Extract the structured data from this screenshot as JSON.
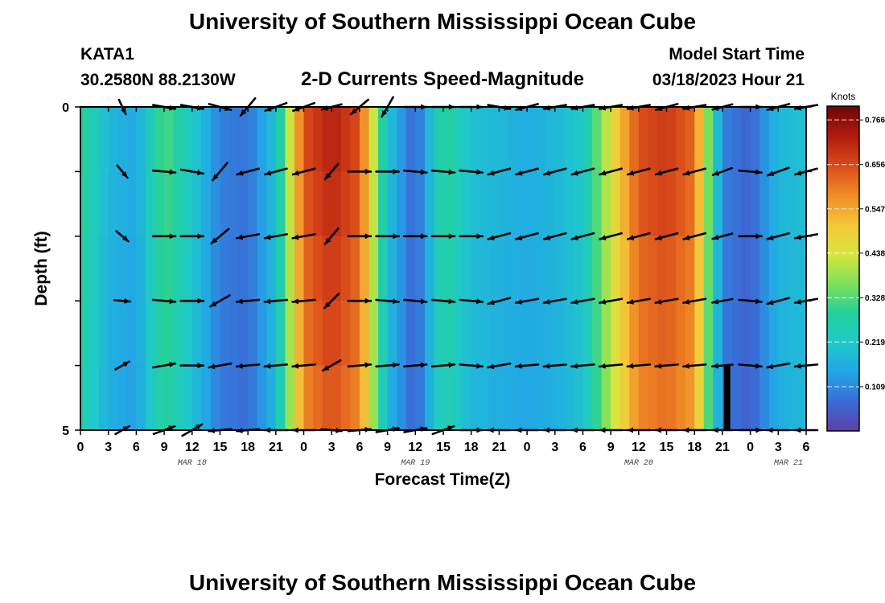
{
  "page": {
    "title": "University of Southern Mississippi Ocean Cube",
    "title_repeat": "University of Southern Mississippi Ocean Cube",
    "station": "KATA1",
    "coordinates": "30.2580N  88.2130W",
    "model_start_label": "Model Start Time",
    "model_start_value": "03/18/2023 Hour 21"
  },
  "chart_data": {
    "type": "heatmap",
    "title": "2-D Currents Speed-Magnitude",
    "xlabel": "Forecast Time(Z)",
    "ylabel": "Depth (ft)",
    "units": "Knots",
    "x_tick_labels": [
      "0",
      "3",
      "6",
      "9",
      "12",
      "15",
      "18",
      "21",
      "0",
      "3",
      "6",
      "9",
      "12",
      "15",
      "18",
      "21",
      "0",
      "3",
      "6",
      "9",
      "12",
      "15",
      "18",
      "21",
      "0",
      "3",
      "6"
    ],
    "x_range_hours": [
      0,
      78
    ],
    "date_labels": [
      {
        "label": "MAR 18",
        "hour": 12
      },
      {
        "label": "MAR 19",
        "hour": 36
      },
      {
        "label": "MAR 20",
        "hour": 60
      },
      {
        "label": "MAR 21",
        "hour": 78
      }
    ],
    "y_tick_labels": [
      {
        "label": "0",
        "depth": 0
      },
      {
        "label": "",
        "depth": 1
      },
      {
        "label": "",
        "depth": 2
      },
      {
        "label": "",
        "depth": 3
      },
      {
        "label": "",
        "depth": 4
      },
      {
        "label": "5",
        "depth": 5
      }
    ],
    "y_range_ft": [
      0,
      5
    ],
    "colorbar_ticks": [
      "0.766",
      "0.656",
      "0.547",
      "0.438",
      "0.328",
      "0.219",
      "0.109"
    ],
    "colorbar_tick_values": [
      0.766,
      0.656,
      0.547,
      0.438,
      0.328,
      0.219,
      0.109
    ],
    "colorbar_range": [
      0,
      0.8
    ],
    "colorbar_colors": [
      "#5e3ea8",
      "#3a6cd6",
      "#22a7e6",
      "#1fc9c9",
      "#24d09a",
      "#7fe05a",
      "#d8e63c",
      "#f5c63a",
      "#f08a26",
      "#d94a1a",
      "#b01a0f",
      "#6e0605"
    ],
    "speed_hours": [
      0,
      3,
      6,
      9,
      12,
      15,
      18,
      21,
      24,
      27,
      30,
      33,
      36,
      39,
      42,
      45,
      48,
      51,
      54,
      57,
      60,
      63,
      66,
      69,
      72,
      75,
      78
    ],
    "speed_profile": [
      0.3,
      0.18,
      0.15,
      0.33,
      0.22,
      0.1,
      0.08,
      0.2,
      0.65,
      0.72,
      0.65,
      0.2,
      0.06,
      0.3,
      0.2,
      0.18,
      0.16,
      0.18,
      0.22,
      0.45,
      0.65,
      0.68,
      0.62,
      0.1,
      0.06,
      0.18,
      0.2
    ],
    "depth_factors": [
      1.0,
      0.98,
      0.95,
      0.93,
      0.9,
      0.88
    ],
    "vector_hours": [
      4.5,
      9,
      12,
      15,
      18,
      21,
      24,
      27,
      30,
      33,
      36,
      39,
      42,
      45,
      48,
      51,
      54,
      57,
      60,
      63,
      66,
      69,
      72,
      75,
      78
    ],
    "vector_depths": [
      0,
      1,
      2,
      3,
      4,
      5
    ],
    "vector_angles": [
      [
        65,
        10,
        10,
        15,
        130,
        160,
        160,
        165,
        140,
        120,
        0,
        0,
        0,
        10,
        165,
        170,
        170,
        170,
        170,
        165,
        170,
        165,
        0,
        165,
        170
      ],
      [
        50,
        5,
        10,
        130,
        165,
        165,
        165,
        130,
        0,
        0,
        5,
        5,
        5,
        165,
        165,
        165,
        165,
        165,
        165,
        165,
        165,
        160,
        5,
        160,
        165
      ],
      [
        40,
        0,
        0,
        140,
        170,
        170,
        170,
        130,
        0,
        0,
        0,
        0,
        0,
        165,
        165,
        165,
        165,
        165,
        165,
        165,
        165,
        165,
        0,
        165,
        170
      ],
      [
        5,
        5,
        0,
        150,
        175,
        175,
        175,
        135,
        0,
        5,
        5,
        5,
        5,
        165,
        170,
        170,
        170,
        170,
        170,
        170,
        170,
        170,
        5,
        165,
        170
      ],
      [
        330,
        350,
        0,
        170,
        175,
        175,
        175,
        150,
        355,
        355,
        355,
        355,
        5,
        170,
        175,
        175,
        175,
        175,
        175,
        175,
        175,
        175,
        5,
        170,
        175
      ],
      [
        330,
        340,
        330,
        175,
        175,
        180,
        180,
        5,
        355,
        350,
        350,
        340,
        0,
        180,
        180,
        180,
        180,
        180,
        180,
        180,
        180,
        180,
        0,
        180,
        180
      ]
    ],
    "vector_lengths": [
      0.7,
      1,
      1,
      1,
      1,
      1,
      1,
      0.9,
      1,
      1,
      1,
      1,
      1,
      1,
      1,
      1,
      1,
      1,
      1,
      1,
      1,
      0.9,
      1,
      1,
      1
    ],
    "black_bar_hour": 69.5,
    "black_bar_depth_from": 4.0
  }
}
